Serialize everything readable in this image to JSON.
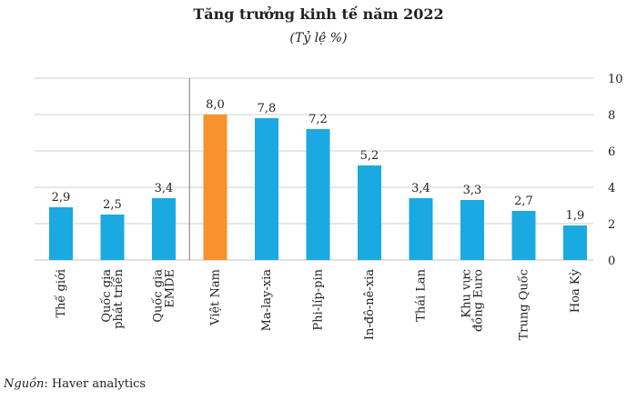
{
  "chart_data": {
    "type": "bar",
    "title": "Tăng trưởng kinh tế năm 2022",
    "subtitle": "(Tỷ lệ %)",
    "categories": [
      [
        "Thế giới"
      ],
      [
        "Quốc gia",
        "phát triển"
      ],
      [
        "Quốc gia",
        "EMDE"
      ],
      [
        "Việt Nam"
      ],
      [
        "Ma-lay-xia"
      ],
      [
        "Phi-líp-pin"
      ],
      [
        "In-đô-nê-xia"
      ],
      [
        "Thái Lan"
      ],
      [
        "Khu vực",
        "đồng Euro"
      ],
      [
        "Trung Quốc"
      ],
      [
        "Hoa Kỳ"
      ]
    ],
    "values": [
      2.9,
      2.5,
      3.4,
      8.0,
      7.8,
      7.2,
      5.2,
      3.4,
      3.3,
      2.7,
      1.9
    ],
    "value_labels": [
      "2,9",
      "2,5",
      "3,4",
      "8,0",
      "7,8",
      "7,2",
      "5,2",
      "3,4",
      "3,3",
      "2,7",
      "1,9"
    ],
    "highlight_index": 3,
    "ylim": [
      0,
      10
    ],
    "yticks": [
      0,
      2,
      4,
      6,
      8,
      10
    ],
    "y_axis_side": "right",
    "gridlines": true,
    "separator_after_index": 2,
    "colors": {
      "bar": "#1ba9e1",
      "highlight": "#f7922e",
      "grid": "#cfcfcf",
      "separator": "#7a7a7a"
    }
  },
  "source": {
    "label": "Nguồn",
    "text": ": Haver analytics"
  }
}
